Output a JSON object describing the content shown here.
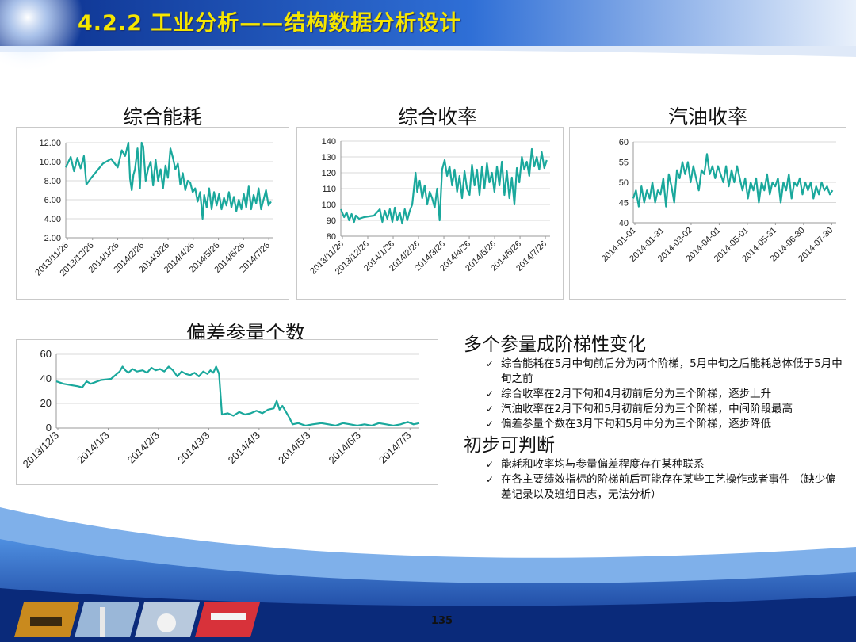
{
  "slide": {
    "title": "4.2.2 工业分析——结构数据分析设计",
    "page_number": "135"
  },
  "notes": {
    "sections": [
      {
        "heading": "多个参量成阶梯性变化",
        "items": [
          "综合能耗在5月中旬前后分为两个阶梯，5月中旬之后能耗总体低于5月中旬之前",
          "综合收率在2月下旬和4月初前后分为三个阶梯，逐步上升",
          "汽油收率在2月下旬和5月初前后分为三个阶梯，中间阶段最高",
          "偏差参量个数在3月下旬和5月中分为三个阶梯，逐步降低"
        ]
      },
      {
        "heading": "初步可判断",
        "items": [
          "能耗和收率均与参量偏差程度存在某种联系",
          "在各主要绩效指标的阶梯前后可能存在某些工艺操作或者事件 （缺少偏差记录以及班组日志，无法分析）"
        ]
      }
    ]
  },
  "style": {
    "series_color": "#1aa89c",
    "title_color": "#f5e600",
    "header_blue": "#1f4fae",
    "grid_color": "#d9d9d9"
  },
  "chart_data": [
    {
      "type": "line",
      "title": "综合能耗",
      "ylim": [
        2,
        12
      ],
      "yticks": [
        "12.00",
        "10.00",
        "8.00",
        "6.00",
        "4.00",
        "2.00"
      ],
      "xticks": [
        "2013/11/26",
        "2013/12/26",
        "2014/1/26",
        "2014/2/26",
        "2014/3/26",
        "2014/4/26",
        "2014/5/26",
        "2014/6/26",
        "2014/7/26"
      ],
      "xlim": [
        "2013-11-26",
        "2014-08-05"
      ],
      "series": [
        {
          "x": [
            "2013-11-26",
            "2013-12-02",
            "2013-12-06",
            "2013-12-10",
            "2013-12-14",
            "2013-12-18",
            "2013-12-21",
            "2013-12-26",
            "2014-01-10",
            "2014-01-20",
            "2014-01-28",
            "2014-02-02",
            "2014-02-06",
            "2014-02-10",
            "2014-02-12",
            "2014-02-14",
            "2014-02-16",
            "2014-02-18",
            "2014-02-21",
            "2014-02-24",
            "2014-02-26",
            "2014-02-28",
            "2014-03-03",
            "2014-03-06",
            "2014-03-09",
            "2014-03-12",
            "2014-03-15",
            "2014-03-18",
            "2014-03-21",
            "2014-03-24",
            "2014-03-27",
            "2014-03-30",
            "2014-04-02",
            "2014-04-05",
            "2014-04-08",
            "2014-04-11",
            "2014-04-14",
            "2014-04-17",
            "2014-04-20",
            "2014-04-23",
            "2014-04-26",
            "2014-04-29",
            "2014-05-02",
            "2014-05-05",
            "2014-05-08",
            "2014-05-11",
            "2014-05-13",
            "2014-05-16",
            "2014-05-19",
            "2014-05-22",
            "2014-05-25",
            "2014-05-28",
            "2014-05-31",
            "2014-06-03",
            "2014-06-06",
            "2014-06-09",
            "2014-06-12",
            "2014-06-15",
            "2014-06-18",
            "2014-06-21",
            "2014-06-24",
            "2014-06-27",
            "2014-06-30",
            "2014-07-03",
            "2014-07-06",
            "2014-07-09",
            "2014-07-12",
            "2014-07-15",
            "2014-07-18",
            "2014-07-21",
            "2014-07-24",
            "2014-07-27",
            "2014-07-30",
            "2014-08-02"
          ],
          "y": [
            9.4,
            10.5,
            9.0,
            10.4,
            9.3,
            10.6,
            7.6,
            8.2,
            9.8,
            10.3,
            9.4,
            11.2,
            10.6,
            12.0,
            8.2,
            7.0,
            8.6,
            9.2,
            11.4,
            7.2,
            12.0,
            11.6,
            8.0,
            9.3,
            10.0,
            7.5,
            10.2,
            8.0,
            9.2,
            7.2,
            9.6,
            8.3,
            11.4,
            10.4,
            9.2,
            9.8,
            7.6,
            8.8,
            7.0,
            8.0,
            7.8,
            6.8,
            7.2,
            5.8,
            6.8,
            4.0,
            6.5,
            5.2,
            7.2,
            5.0,
            6.8,
            5.4,
            6.6,
            5.0,
            6.2,
            5.4,
            6.8,
            5.2,
            6.3,
            4.8,
            6.0,
            5.0,
            6.6,
            5.2,
            7.4,
            5.0,
            6.5,
            5.6,
            7.2,
            5.0,
            6.0,
            7.0,
            5.4,
            5.8
          ]
        }
      ]
    },
    {
      "type": "line",
      "title": "综合收率",
      "ylim": [
        80,
        140
      ],
      "yticks": [
        "140",
        "130",
        "120",
        "110",
        "100",
        "90",
        "80"
      ],
      "xticks": [
        "2013/11/26",
        "2013/12/26",
        "2014/1/26",
        "2014/2/26",
        "2014/3/26",
        "2014/4/26",
        "2014/5/26",
        "2014/6/26",
        "2014/7/26"
      ],
      "xlim": [
        "2013-11-26",
        "2014-08-05"
      ],
      "series": [
        {
          "x": [
            "2013-11-26",
            "2013-11-30",
            "2013-12-03",
            "2013-12-06",
            "2013-12-09",
            "2013-12-12",
            "2013-12-14",
            "2013-12-18",
            "2013-12-24",
            "2014-01-05",
            "2014-01-12",
            "2014-01-15",
            "2014-01-18",
            "2014-01-21",
            "2014-01-24",
            "2014-01-27",
            "2014-01-30",
            "2014-02-02",
            "2014-02-05",
            "2014-02-08",
            "2014-02-11",
            "2014-02-14",
            "2014-02-17",
            "2014-02-20",
            "2014-02-22",
            "2014-02-24",
            "2014-02-26",
            "2014-03-01",
            "2014-03-04",
            "2014-03-07",
            "2014-03-10",
            "2014-03-13",
            "2014-03-16",
            "2014-03-19",
            "2014-03-22",
            "2014-03-25",
            "2014-03-28",
            "2014-03-31",
            "2014-04-03",
            "2014-04-06",
            "2014-04-09",
            "2014-04-12",
            "2014-04-15",
            "2014-04-18",
            "2014-04-21",
            "2014-04-24",
            "2014-04-27",
            "2014-04-30",
            "2014-05-03",
            "2014-05-06",
            "2014-05-09",
            "2014-05-12",
            "2014-05-15",
            "2014-05-18",
            "2014-05-21",
            "2014-05-24",
            "2014-05-27",
            "2014-05-30",
            "2014-06-02",
            "2014-06-05",
            "2014-06-08",
            "2014-06-11",
            "2014-06-14",
            "2014-06-17",
            "2014-06-20",
            "2014-06-23",
            "2014-06-26",
            "2014-06-29",
            "2014-07-02",
            "2014-07-05",
            "2014-07-08",
            "2014-07-11",
            "2014-07-14",
            "2014-07-17",
            "2014-07-20",
            "2014-07-23",
            "2014-07-26",
            "2014-07-29",
            "2014-08-01"
          ],
          "y": [
            97,
            92,
            95,
            90,
            94,
            89,
            93,
            91,
            92,
            93,
            97,
            89,
            96,
            91,
            97,
            89,
            98,
            90,
            95,
            88,
            97,
            90,
            96,
            100,
            110,
            120,
            108,
            115,
            104,
            112,
            100,
            108,
            104,
            98,
            110,
            90,
            122,
            128,
            118,
            124,
            112,
            122,
            108,
            118,
            104,
            121,
            110,
            106,
            125,
            112,
            122,
            106,
            124,
            110,
            126,
            114,
            120,
            108,
            124,
            112,
            127,
            106,
            121,
            104,
            117,
            100,
            123,
            114,
            130,
            122,
            127,
            118,
            135,
            124,
            130,
            122,
            133,
            123,
            128
          ]
        }
      ]
    },
    {
      "type": "line",
      "title": "汽油收率",
      "ylim": [
        40,
        60
      ],
      "yticks": [
        "60",
        "55",
        "50",
        "45",
        "40"
      ],
      "xticks": [
        "2014-01-01",
        "2014-01-31",
        "2014-03-02",
        "2014-04-01",
        "2014-05-01",
        "2014-05-31",
        "2014-06-30",
        "2014-07-30"
      ],
      "xlim": [
        "2014-01-01",
        "2014-08-12"
      ],
      "series": [
        {
          "x": [
            "2014-01-01",
            "2014-01-04",
            "2014-01-07",
            "2014-01-10",
            "2014-01-13",
            "2014-01-16",
            "2014-01-19",
            "2014-01-22",
            "2014-01-25",
            "2014-01-28",
            "2014-01-31",
            "2014-02-03",
            "2014-02-06",
            "2014-02-09",
            "2014-02-12",
            "2014-02-15",
            "2014-02-18",
            "2014-02-21",
            "2014-02-24",
            "2014-02-27",
            "2014-03-02",
            "2014-03-05",
            "2014-03-08",
            "2014-03-11",
            "2014-03-14",
            "2014-03-17",
            "2014-03-20",
            "2014-03-23",
            "2014-03-26",
            "2014-03-29",
            "2014-04-01",
            "2014-04-04",
            "2014-04-07",
            "2014-04-10",
            "2014-04-13",
            "2014-04-16",
            "2014-04-19",
            "2014-04-22",
            "2014-04-25",
            "2014-04-28",
            "2014-05-01",
            "2014-05-04",
            "2014-05-07",
            "2014-05-10",
            "2014-05-13",
            "2014-05-16",
            "2014-05-19",
            "2014-05-22",
            "2014-05-25",
            "2014-05-28",
            "2014-05-31",
            "2014-06-03",
            "2014-06-06",
            "2014-06-09",
            "2014-06-12",
            "2014-06-15",
            "2014-06-18",
            "2014-06-21",
            "2014-06-24",
            "2014-06-27",
            "2014-06-30",
            "2014-07-03",
            "2014-07-06",
            "2014-07-09",
            "2014-07-12",
            "2014-07-15",
            "2014-07-18",
            "2014-07-21",
            "2014-07-24",
            "2014-07-27",
            "2014-07-30",
            "2014-08-02",
            "2014-08-05",
            "2014-08-08"
          ],
          "y": [
            46,
            48,
            44,
            49,
            45,
            48,
            46,
            50,
            45,
            48,
            47,
            51,
            44,
            52,
            49,
            45,
            53,
            51,
            55,
            52,
            55,
            50,
            54,
            51,
            48,
            53,
            52,
            57,
            52,
            54,
            51,
            54,
            52,
            50,
            54,
            49,
            53,
            50,
            54,
            51,
            48,
            51,
            46,
            50,
            48,
            51,
            45,
            50,
            48,
            52,
            47,
            50,
            49,
            51,
            45,
            50,
            48,
            52,
            46,
            50,
            49,
            51,
            47,
            50,
            48,
            50,
            46,
            49,
            47,
            50,
            48,
            49,
            47,
            48
          ]
        }
      ]
    },
    {
      "type": "line",
      "title": "偏差参量个数",
      "ylim": [
        0,
        60
      ],
      "yticks": [
        "60",
        "40",
        "20",
        "0"
      ],
      "xticks": [
        "2013/12/3",
        "2014/1/3",
        "2014/2/3",
        "2014/3/3",
        "2014/4/3",
        "2014/5/3",
        "2014/6/3",
        "2014/7/3"
      ],
      "xlim": [
        "2013-12-03",
        "2014-08-12"
      ],
      "series": [
        {
          "x": [
            "2013-12-03",
            "2013-12-08",
            "2013-12-13",
            "2013-12-18",
            "2013-12-21",
            "2013-12-24",
            "2013-12-27",
            "2014-01-03",
            "2014-01-10",
            "2014-01-14",
            "2014-01-16",
            "2014-01-18",
            "2014-01-20",
            "2014-01-22",
            "2014-01-25",
            "2014-01-28",
            "2014-02-01",
            "2014-02-04",
            "2014-02-07",
            "2014-02-10",
            "2014-02-13",
            "2014-02-16",
            "2014-02-19",
            "2014-02-22",
            "2014-02-25",
            "2014-02-28",
            "2014-03-03",
            "2014-03-06",
            "2014-03-09",
            "2014-03-12",
            "2014-03-15",
            "2014-03-18",
            "2014-03-20",
            "2014-03-22",
            "2014-03-24",
            "2014-03-26",
            "2014-03-28",
            "2014-04-01",
            "2014-04-05",
            "2014-04-09",
            "2014-04-13",
            "2014-04-17",
            "2014-04-21",
            "2014-04-25",
            "2014-04-29",
            "2014-05-03",
            "2014-05-05",
            "2014-05-07",
            "2014-05-09",
            "2014-05-11",
            "2014-05-13",
            "2014-05-14",
            "2014-05-16",
            "2014-05-20",
            "2014-05-25",
            "2014-05-30",
            "2014-06-05",
            "2014-06-10",
            "2014-06-15",
            "2014-06-20",
            "2014-06-25",
            "2014-06-30",
            "2014-07-05",
            "2014-07-10",
            "2014-07-15",
            "2014-07-20",
            "2014-07-25",
            "2014-07-30",
            "2014-08-04",
            "2014-08-08",
            "2014-08-12"
          ],
          "y": [
            38,
            36,
            35,
            34,
            33,
            38,
            36,
            39,
            40,
            44,
            46,
            50,
            47,
            45,
            48,
            46,
            47,
            45,
            49,
            47,
            48,
            46,
            50,
            47,
            42,
            46,
            44,
            43,
            45,
            42,
            46,
            44,
            47,
            45,
            50,
            44,
            11,
            12,
            10,
            13,
            11,
            12,
            14,
            12,
            15,
            16,
            22,
            15,
            18,
            14,
            10,
            8,
            3,
            4,
            2,
            3,
            4,
            3,
            2,
            4,
            3,
            2,
            3,
            2,
            4,
            3,
            2,
            3,
            5,
            3,
            4
          ]
        }
      ]
    }
  ]
}
